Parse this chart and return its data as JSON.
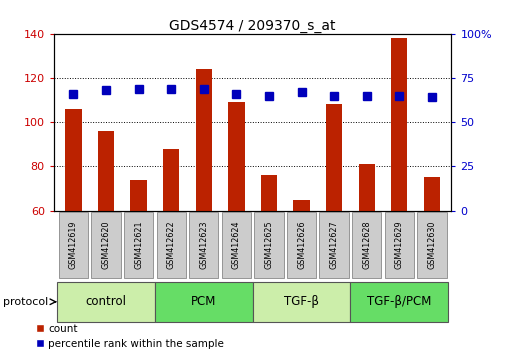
{
  "title": "GDS4574 / 209370_s_at",
  "samples": [
    "GSM412619",
    "GSM412620",
    "GSM412621",
    "GSM412622",
    "GSM412623",
    "GSM412624",
    "GSM412625",
    "GSM412626",
    "GSM412627",
    "GSM412628",
    "GSM412629",
    "GSM412630"
  ],
  "counts": [
    106,
    96,
    74,
    88,
    124,
    109,
    76,
    65,
    108,
    81,
    138,
    75
  ],
  "percentiles": [
    66,
    68,
    69,
    69,
    69,
    66,
    65,
    67,
    65,
    65,
    65,
    64
  ],
  "groups": [
    {
      "label": "control",
      "start": 0,
      "end": 3,
      "color": "#cceeaa"
    },
    {
      "label": "PCM",
      "start": 3,
      "end": 6,
      "color": "#66dd66"
    },
    {
      "label": "TGF-β",
      "start": 6,
      "end": 9,
      "color": "#cceeaa"
    },
    {
      "label": "TGF-β/PCM",
      "start": 9,
      "end": 12,
      "color": "#66dd66"
    }
  ],
  "ylim_left": [
    60,
    140
  ],
  "ylim_right": [
    0,
    100
  ],
  "yticks_left": [
    60,
    80,
    100,
    120,
    140
  ],
  "yticks_right": [
    0,
    25,
    50,
    75,
    100
  ],
  "ytick_labels_right": [
    "0",
    "25",
    "50",
    "75",
    "100%"
  ],
  "bar_color": "#bb2200",
  "marker_color": "#0000bb",
  "bar_width": 0.5,
  "marker_size": 6,
  "legend_count_label": "count",
  "legend_pct_label": "percentile rank within the sample",
  "left_tick_color": "#cc0000",
  "right_tick_color": "#0000cc",
  "sample_box_color": "#cccccc",
  "sample_box_edge": "#888888",
  "protocol_label": "protocol"
}
